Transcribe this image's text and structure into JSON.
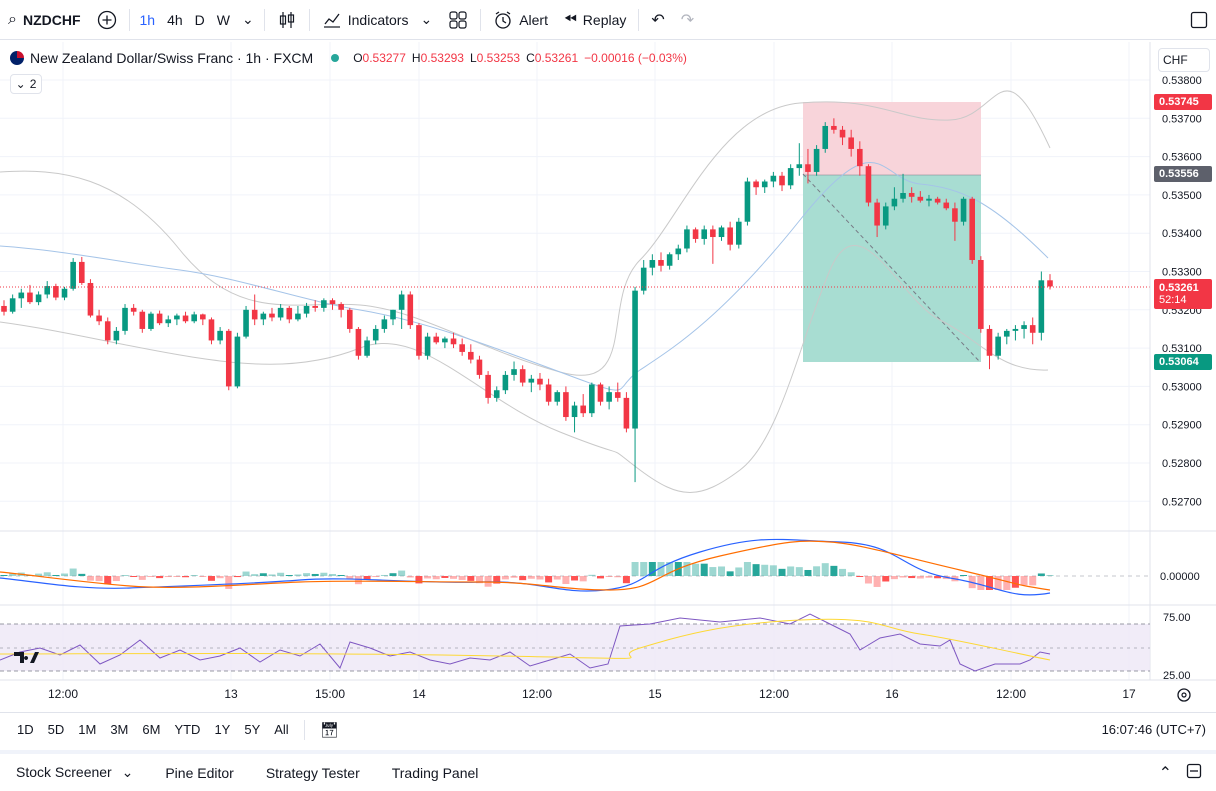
{
  "toolbar": {
    "symbol": "NZDCHF",
    "intervals": [
      "1h",
      "4h",
      "D",
      "W"
    ],
    "indicators_label": "Indicators",
    "alert_label": "Alert",
    "replay_label": "Replay"
  },
  "legend": {
    "title": "New Zealand Dollar/Swiss Franc · 1h · FXCM",
    "open": "0.53277",
    "high": "0.53293",
    "low": "0.53253",
    "close": "0.53261",
    "change": "−0.00016 (−0.03%)",
    "collapse_count": "2"
  },
  "currency": "CHF",
  "price_axis": {
    "ticks": [
      "0.53800",
      "0.53700",
      "0.53600",
      "0.53500",
      "0.53400",
      "0.53300",
      "0.53200",
      "0.53100",
      "0.53000",
      "0.52900",
      "0.52800",
      "0.52700"
    ],
    "tag_stop": "0.53745",
    "tag_entry": "0.53556",
    "tag_last": "0.53261",
    "tag_countdown": "52:14",
    "tag_target": "0.53064"
  },
  "macd_axis": {
    "zero": "0.00000"
  },
  "rsi_axis": {
    "upper": "75.00",
    "lower": "25.00"
  },
  "time_axis": {
    "labels": [
      "12:00",
      "13",
      "15:00",
      "14",
      "12:00",
      "15",
      "12:00",
      "16",
      "12:00",
      "17"
    ]
  },
  "range_bar": {
    "ranges": [
      "1D",
      "5D",
      "1M",
      "3M",
      "6M",
      "YTD",
      "1Y",
      "5Y",
      "All"
    ],
    "clock": "16:07:46 (UTC+7)"
  },
  "bottom_tabs": [
    "Stock Screener",
    "Pine Editor",
    "Strategy Tester",
    "Trading Panel"
  ],
  "colors": {
    "up": "#089981",
    "down": "#f23645",
    "accent": "#2962ff",
    "stop_zone": "#f8d4da",
    "target_zone": "#a8ddd2"
  },
  "chart_data": {
    "type": "candlestick",
    "candles_ohlc": [
      [
        0.5321,
        0.53225,
        0.53185,
        0.53195
      ],
      [
        0.53195,
        0.5324,
        0.5319,
        0.5323
      ],
      [
        0.5323,
        0.53255,
        0.53205,
        0.53245
      ],
      [
        0.53245,
        0.53265,
        0.53215,
        0.5322
      ],
      [
        0.5322,
        0.53248,
        0.53212,
        0.5324
      ],
      [
        0.5324,
        0.53275,
        0.5323,
        0.53262
      ],
      [
        0.53262,
        0.53268,
        0.53225,
        0.53232
      ],
      [
        0.53232,
        0.5326,
        0.53225,
        0.53255
      ],
      [
        0.53255,
        0.53335,
        0.5325,
        0.53325
      ],
      [
        0.53325,
        0.53338,
        0.53265,
        0.5327
      ],
      [
        0.5327,
        0.5328,
        0.5318,
        0.53185
      ],
      [
        0.53185,
        0.532,
        0.5316,
        0.5317
      ],
      [
        0.5317,
        0.5318,
        0.5311,
        0.5312
      ],
      [
        0.5312,
        0.53155,
        0.5311,
        0.53145
      ],
      [
        0.53145,
        0.53215,
        0.53135,
        0.53205
      ],
      [
        0.53205,
        0.53215,
        0.53185,
        0.53195
      ],
      [
        0.53195,
        0.532,
        0.5314,
        0.5315
      ],
      [
        0.5315,
        0.53195,
        0.53145,
        0.5319
      ],
      [
        0.5319,
        0.53198,
        0.5316,
        0.53165
      ],
      [
        0.53165,
        0.53185,
        0.53155,
        0.53175
      ],
      [
        0.53175,
        0.5319,
        0.5316,
        0.53185
      ],
      [
        0.53185,
        0.53195,
        0.53165,
        0.5317
      ],
      [
        0.5317,
        0.53195,
        0.53165,
        0.53188
      ],
      [
        0.53188,
        0.5319,
        0.5316,
        0.53175
      ],
      [
        0.53175,
        0.5318,
        0.5311,
        0.5312
      ],
      [
        0.5312,
        0.53155,
        0.5311,
        0.53145
      ],
      [
        0.53145,
        0.5315,
        0.5299,
        0.53
      ],
      [
        0.53,
        0.5314,
        0.52995,
        0.5313
      ],
      [
        0.5313,
        0.5321,
        0.53125,
        0.532
      ],
      [
        0.532,
        0.5324,
        0.5316,
        0.53175
      ],
      [
        0.53175,
        0.53195,
        0.5316,
        0.5319
      ],
      [
        0.5319,
        0.53205,
        0.5317,
        0.5318
      ],
      [
        0.5318,
        0.53215,
        0.53172,
        0.53205
      ],
      [
        0.53205,
        0.5321,
        0.53165,
        0.53175
      ],
      [
        0.53175,
        0.5321,
        0.5317,
        0.5319
      ],
      [
        0.5319,
        0.53218,
        0.5318,
        0.5321
      ],
      [
        0.5321,
        0.53225,
        0.53195,
        0.53205
      ],
      [
        0.53205,
        0.5323,
        0.53195,
        0.53225
      ],
      [
        0.53225,
        0.5323,
        0.532,
        0.53215
      ],
      [
        0.53215,
        0.5322,
        0.5318,
        0.532
      ],
      [
        0.532,
        0.53205,
        0.5314,
        0.5315
      ],
      [
        0.5315,
        0.53155,
        0.5307,
        0.5308
      ],
      [
        0.5308,
        0.5313,
        0.53075,
        0.5312
      ],
      [
        0.5312,
        0.5316,
        0.5311,
        0.5315
      ],
      [
        0.5315,
        0.53185,
        0.5314,
        0.53175
      ],
      [
        0.53175,
        0.532,
        0.5316,
        0.532
      ],
      [
        0.532,
        0.5325,
        0.5315,
        0.5324
      ],
      [
        0.5324,
        0.53248,
        0.5315,
        0.5316
      ],
      [
        0.5316,
        0.53165,
        0.5307,
        0.5308
      ],
      [
        0.5308,
        0.5314,
        0.5307,
        0.5313
      ],
      [
        0.5313,
        0.5314,
        0.5311,
        0.53115
      ],
      [
        0.53115,
        0.5313,
        0.531,
        0.53125
      ],
      [
        0.53125,
        0.5314,
        0.531,
        0.5311
      ],
      [
        0.5311,
        0.53125,
        0.5308,
        0.5309
      ],
      [
        0.5309,
        0.5311,
        0.5306,
        0.5307
      ],
      [
        0.5307,
        0.5308,
        0.5302,
        0.5303
      ],
      [
        0.5303,
        0.5304,
        0.52955,
        0.5297
      ],
      [
        0.5297,
        0.53,
        0.5296,
        0.5299
      ],
      [
        0.5299,
        0.5304,
        0.5298,
        0.5303
      ],
      [
        0.5303,
        0.53065,
        0.53015,
        0.53045
      ],
      [
        0.53045,
        0.53055,
        0.53,
        0.5301
      ],
      [
        0.5301,
        0.5303,
        0.52985,
        0.5302
      ],
      [
        0.5302,
        0.53035,
        0.5299,
        0.53005
      ],
      [
        0.53005,
        0.5302,
        0.5295,
        0.5296
      ],
      [
        0.5296,
        0.5299,
        0.5295,
        0.52985
      ],
      [
        0.52985,
        0.53,
        0.5291,
        0.5292
      ],
      [
        0.5292,
        0.5296,
        0.5288,
        0.5295
      ],
      [
        0.5295,
        0.5298,
        0.5292,
        0.5293
      ],
      [
        0.5293,
        0.5301,
        0.5292,
        0.53005
      ],
      [
        0.53005,
        0.5301,
        0.5295,
        0.5296
      ],
      [
        0.5296,
        0.53,
        0.5294,
        0.52985
      ],
      [
        0.52985,
        0.5301,
        0.5296,
        0.5297
      ],
      [
        0.5297,
        0.52985,
        0.5288,
        0.5289
      ],
      [
        0.5289,
        0.5326,
        0.5275,
        0.5325
      ],
      [
        0.5325,
        0.5333,
        0.5324,
        0.5331
      ],
      [
        0.5331,
        0.53345,
        0.5329,
        0.5333
      ],
      [
        0.5333,
        0.5335,
        0.533,
        0.53315
      ],
      [
        0.53315,
        0.5335,
        0.53305,
        0.53345
      ],
      [
        0.53345,
        0.5337,
        0.5333,
        0.5336
      ],
      [
        0.5336,
        0.5342,
        0.5335,
        0.5341
      ],
      [
        0.5341,
        0.53415,
        0.53375,
        0.53385
      ],
      [
        0.53385,
        0.5342,
        0.5337,
        0.5341
      ],
      [
        0.5341,
        0.5342,
        0.5332,
        0.5339
      ],
      [
        0.5339,
        0.5342,
        0.5338,
        0.53415
      ],
      [
        0.53415,
        0.5343,
        0.53355,
        0.5337
      ],
      [
        0.5337,
        0.5344,
        0.5336,
        0.5343
      ],
      [
        0.5343,
        0.53545,
        0.5342,
        0.53535
      ],
      [
        0.53535,
        0.5354,
        0.535,
        0.5352
      ],
      [
        0.5352,
        0.5354,
        0.53505,
        0.53535
      ],
      [
        0.53535,
        0.5356,
        0.5352,
        0.5355
      ],
      [
        0.5355,
        0.5356,
        0.5351,
        0.53525
      ],
      [
        0.53525,
        0.5358,
        0.53515,
        0.5357
      ],
      [
        0.5357,
        0.53635,
        0.5355,
        0.5358
      ],
      [
        0.5358,
        0.5362,
        0.5353,
        0.5356
      ],
      [
        0.5356,
        0.5363,
        0.5355,
        0.5362
      ],
      [
        0.5362,
        0.5369,
        0.5361,
        0.5368
      ],
      [
        0.5368,
        0.537,
        0.5366,
        0.5367
      ],
      [
        0.5367,
        0.5368,
        0.5363,
        0.5365
      ],
      [
        0.5365,
        0.5367,
        0.536,
        0.5362
      ],
      [
        0.5362,
        0.5364,
        0.5355,
        0.53575
      ],
      [
        0.53575,
        0.5358,
        0.5347,
        0.5348
      ],
      [
        0.5348,
        0.5349,
        0.5339,
        0.5342
      ],
      [
        0.5342,
        0.5348,
        0.5341,
        0.5347
      ],
      [
        0.5347,
        0.5352,
        0.5346,
        0.5349
      ],
      [
        0.5349,
        0.53555,
        0.5348,
        0.53505
      ],
      [
        0.53505,
        0.5352,
        0.5348,
        0.53495
      ],
      [
        0.53495,
        0.5351,
        0.5348,
        0.53485
      ],
      [
        0.53485,
        0.535,
        0.5347,
        0.5349
      ],
      [
        0.5349,
        0.53495,
        0.53475,
        0.5348
      ],
      [
        0.5348,
        0.5349,
        0.5346,
        0.53465
      ],
      [
        0.53465,
        0.5348,
        0.5338,
        0.5343
      ],
      [
        0.5343,
        0.53495,
        0.5342,
        0.5349
      ],
      [
        0.5349,
        0.53495,
        0.5332,
        0.5333
      ],
      [
        0.5333,
        0.5334,
        0.5314,
        0.5315
      ],
      [
        0.5315,
        0.5316,
        0.53045,
        0.5308
      ],
      [
        0.5308,
        0.5314,
        0.5307,
        0.5313
      ],
      [
        0.5313,
        0.5315,
        0.5311,
        0.53145
      ],
      [
        0.53145,
        0.5316,
        0.5312,
        0.5315
      ],
      [
        0.5315,
        0.5317,
        0.53125,
        0.5316
      ],
      [
        0.5316,
        0.5318,
        0.5311,
        0.5314
      ],
      [
        0.5314,
        0.533,
        0.5312,
        0.53277
      ],
      [
        0.53277,
        0.53293,
        0.53253,
        0.53261
      ]
    ]
  }
}
